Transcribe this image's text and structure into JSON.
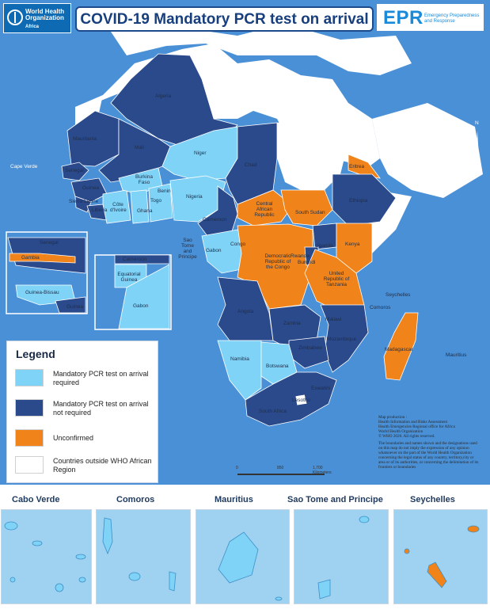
{
  "header": {
    "org_line1": "World Health",
    "org_line2": "Organization",
    "org_region": "Africa",
    "title": "COVID-19 Mandatory PCR test on arrival",
    "epr": "EPR",
    "epr_sub1": "Emergency Preparedness",
    "epr_sub2": "and Response"
  },
  "colors": {
    "required": "#7fd3f7",
    "not_required": "#2b4a8c",
    "unconfirmed": "#f0841a",
    "outside": "#ffffff",
    "sea": "#4a90d6"
  },
  "countries": {
    "algeria": "Algeria",
    "mauritania": "Mauritania",
    "mali": "Mali",
    "niger": "Niger",
    "chad": "Chad",
    "senegal": "Senegal",
    "gambia": "Gambia",
    "guinea_bissau": "Guinea-Bissau",
    "guinea": "Guinea",
    "sierra_leone": "Sierra Leone",
    "liberia": "Liberia",
    "cote_divoire": "Côte d'Ivoire",
    "burkina_faso": "Burkina Faso",
    "ghana": "Ghana",
    "togo": "Togo",
    "benin": "Benin",
    "nigeria": "Nigeria",
    "cameroon": "Cameroon",
    "car": "Central African Republic",
    "south_sudan": "South Sudan",
    "ethiopia": "Ethiopia",
    "eritrea": "Eritrea",
    "equatorial_guinea": "Equatorial Guinea",
    "gabon": "Gabon",
    "congo": "Congo",
    "drc": "Democratic Republic of the Congo",
    "uganda": "Uganda",
    "kenya": "Kenya",
    "rwanda": "Rwanda",
    "burundi": "Burundi",
    "tanzania": "United Republic of Tanzania",
    "angola": "Angola",
    "zambia": "Zambia",
    "malawi": "Malawi",
    "mozambique": "Mozambique",
    "zimbabwe": "Zimbabwe",
    "namibia": "Namibia",
    "botswana": "Botswana",
    "south_africa": "South Africa",
    "lesotho": "Lesotho",
    "eswatini": "Eswatini",
    "madagascar": "Madagascar",
    "seychelles": "Seychelles",
    "comoros": "Comoros",
    "mauritius": "Mauritius",
    "cape_verde": "Cape Verde",
    "sao_tome": "Sao Tome and Principe"
  },
  "compass": "N",
  "legend": {
    "title": "Legend",
    "items": [
      {
        "label": "Mandatory PCR test on arrival required",
        "color": "#7fd3f7"
      },
      {
        "label": "Mandatory PCR test on arrival not required",
        "color": "#2b4a8c"
      },
      {
        "label": "Unconfirmed",
        "color": "#f0841a"
      },
      {
        "label": "Countries outside WHO African Region",
        "color": "#ffffff"
      }
    ]
  },
  "credits": {
    "line1": "Map production :",
    "line2": "Health Information and Risks Assessment",
    "line3": "Health Emergencies Regional office for Africa",
    "line4": "World Health Organization",
    "line5": "© WHO 2020. All rights reserved.",
    "disclaimer": "The boundaries and names shown and the designations used on this map do not imply the expression of any opinion whatsoever on the part of the World Health Organization concerning the legal status of any country, territory,city or area or of its authorities, or concerning the delimitation of its frontiers or boundaries"
  },
  "scale": {
    "t0": "0",
    "t1": "850",
    "t2": "1,700 Kilometers"
  },
  "insets": [
    {
      "title": "Cabo Verde"
    },
    {
      "title": "Comoros"
    },
    {
      "title": "Mauritius"
    },
    {
      "title": "Sao Tome and Principe"
    },
    {
      "title": "Seychelles"
    }
  ]
}
